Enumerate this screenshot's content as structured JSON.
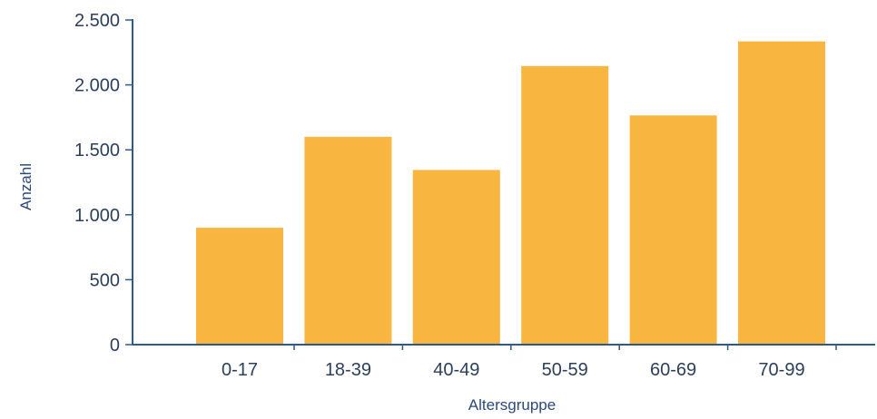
{
  "chart_data": {
    "type": "bar",
    "categories": [
      "0-17",
      "18-39",
      "40-49",
      "50-59",
      "60-69",
      "70-99"
    ],
    "values": [
      900,
      1600,
      1345,
      2145,
      1765,
      2335
    ],
    "xlabel": "Altersgruppe",
    "ylabel": "Anzahl",
    "ylim": [
      0,
      2500
    ],
    "yticks": [
      0,
      500,
      1000,
      1500,
      2000,
      2500
    ],
    "ytick_labels": [
      "0",
      "500",
      "1.000",
      "1.500",
      "2.000",
      "2.500"
    ],
    "grid": false,
    "legend": "none",
    "colors": {
      "bar": "#f8b640",
      "axis": "#2e5a8a",
      "text": "#2b3f5c"
    }
  }
}
